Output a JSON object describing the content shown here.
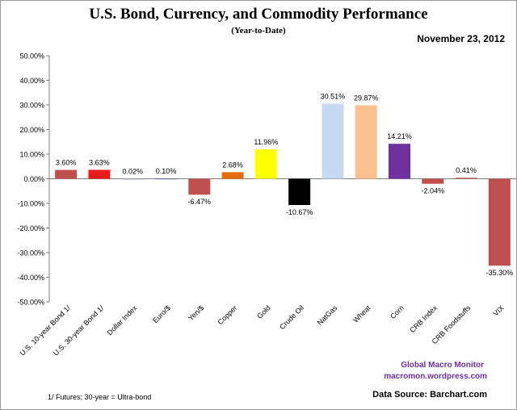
{
  "header": {
    "title": "U.S. Bond, Currency, and Commodity Performance",
    "subtitle": "(Year-to-Date)",
    "date": "November 23, 2012"
  },
  "footer": {
    "credit_name": "Global Macro Monitor",
    "credit_url": "macromon.wordpress.com",
    "footnote": "1/  Futures; 30-year = Ultra-bond",
    "source": "Data Source:  Barchart.com"
  },
  "chart_data": {
    "type": "bar",
    "categories": [
      "U.S. 10-year Bond 1/",
      "U.S. 30-year Bond 1/",
      "Dollar Index",
      "Euro/$",
      "Yen/$",
      "Copper",
      "Gold",
      "Crude Oil",
      "NatGas",
      "Wheat",
      "Corn",
      "CRB Index",
      "CRB Foodstuffs",
      "VIX"
    ],
    "values": [
      3.6,
      3.63,
      0.02,
      0.1,
      -6.47,
      2.68,
      11.96,
      -10.67,
      30.51,
      29.87,
      14.21,
      -2.04,
      0.41,
      -35.3
    ],
    "value_labels": [
      "3.60%",
      "3.63%",
      "0.02%",
      "0.10%",
      "-6.47%",
      "2.68%",
      "11.96%",
      "-10.67%",
      "30.51%",
      "29.87%",
      "14.21%",
      "-2.04%",
      "0.41%",
      "-35.30%"
    ],
    "colors": [
      "#c0504d",
      "#e81a1a",
      "#8fa9c8",
      "#4f6f9a",
      "#c0504d",
      "#e46c0a",
      "#ffff00",
      "#000000",
      "#c6d9f1",
      "#fac090",
      "#7030a0",
      "#c0504d",
      "#c0504d",
      "#c0504d"
    ],
    "ylim": [
      -50,
      50
    ],
    "yticks": [
      "50.00%",
      "40.00%",
      "30.00%",
      "20.00%",
      "10.00%",
      "0.00%",
      "-10.00%",
      "-20.00%",
      "-30.00%",
      "-40.00%",
      "-50.00%"
    ],
    "grid": false,
    "legend": "none"
  }
}
